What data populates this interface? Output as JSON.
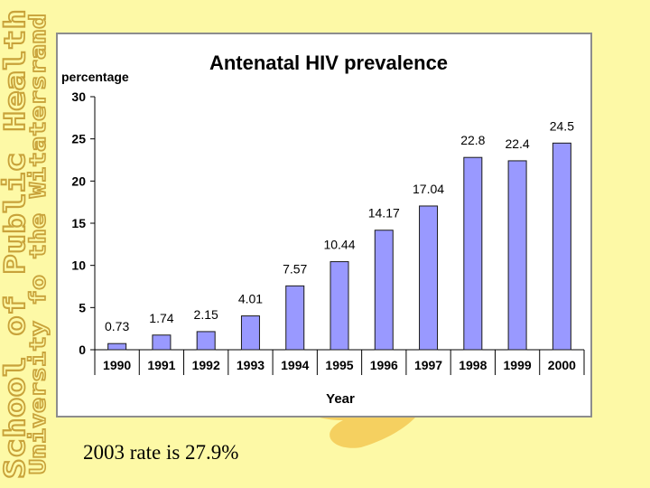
{
  "slide": {
    "side_title_line1": "School of Public Health",
    "side_title_line2": "University fo the Witatersrand",
    "footnote": "2003 rate is 27.9%"
  },
  "colors": {
    "background": "#fdf9a6",
    "bar_fill": "#9999ff",
    "bar_stroke": "#1a1a1a",
    "side_title_text": "#fdf9a6",
    "side_title_outline": "#c8a23a",
    "blob": "#f5d060"
  },
  "chart_data": {
    "type": "bar",
    "title": "Antenatal HIV prevalence",
    "ylabel": "percentage",
    "xlabel": "Year",
    "categories": [
      "1990",
      "1991",
      "1992",
      "1993",
      "1994",
      "1995",
      "1996",
      "1997",
      "1998",
      "1999",
      "2000"
    ],
    "values": [
      0.73,
      1.74,
      2.15,
      4.01,
      7.57,
      10.44,
      14.17,
      17.04,
      22.8,
      22.4,
      24.5
    ],
    "value_labels": [
      "0.73",
      "1.74",
      "2.15",
      "4.01",
      "7.57",
      "10.44",
      "14.17",
      "17.04",
      "22.8",
      "22.4",
      "24.5"
    ],
    "yticks": [
      "0",
      "5",
      "10",
      "15",
      "20",
      "25",
      "30"
    ],
    "ylim": [
      0,
      30
    ],
    "grid": false,
    "legend": "none"
  }
}
